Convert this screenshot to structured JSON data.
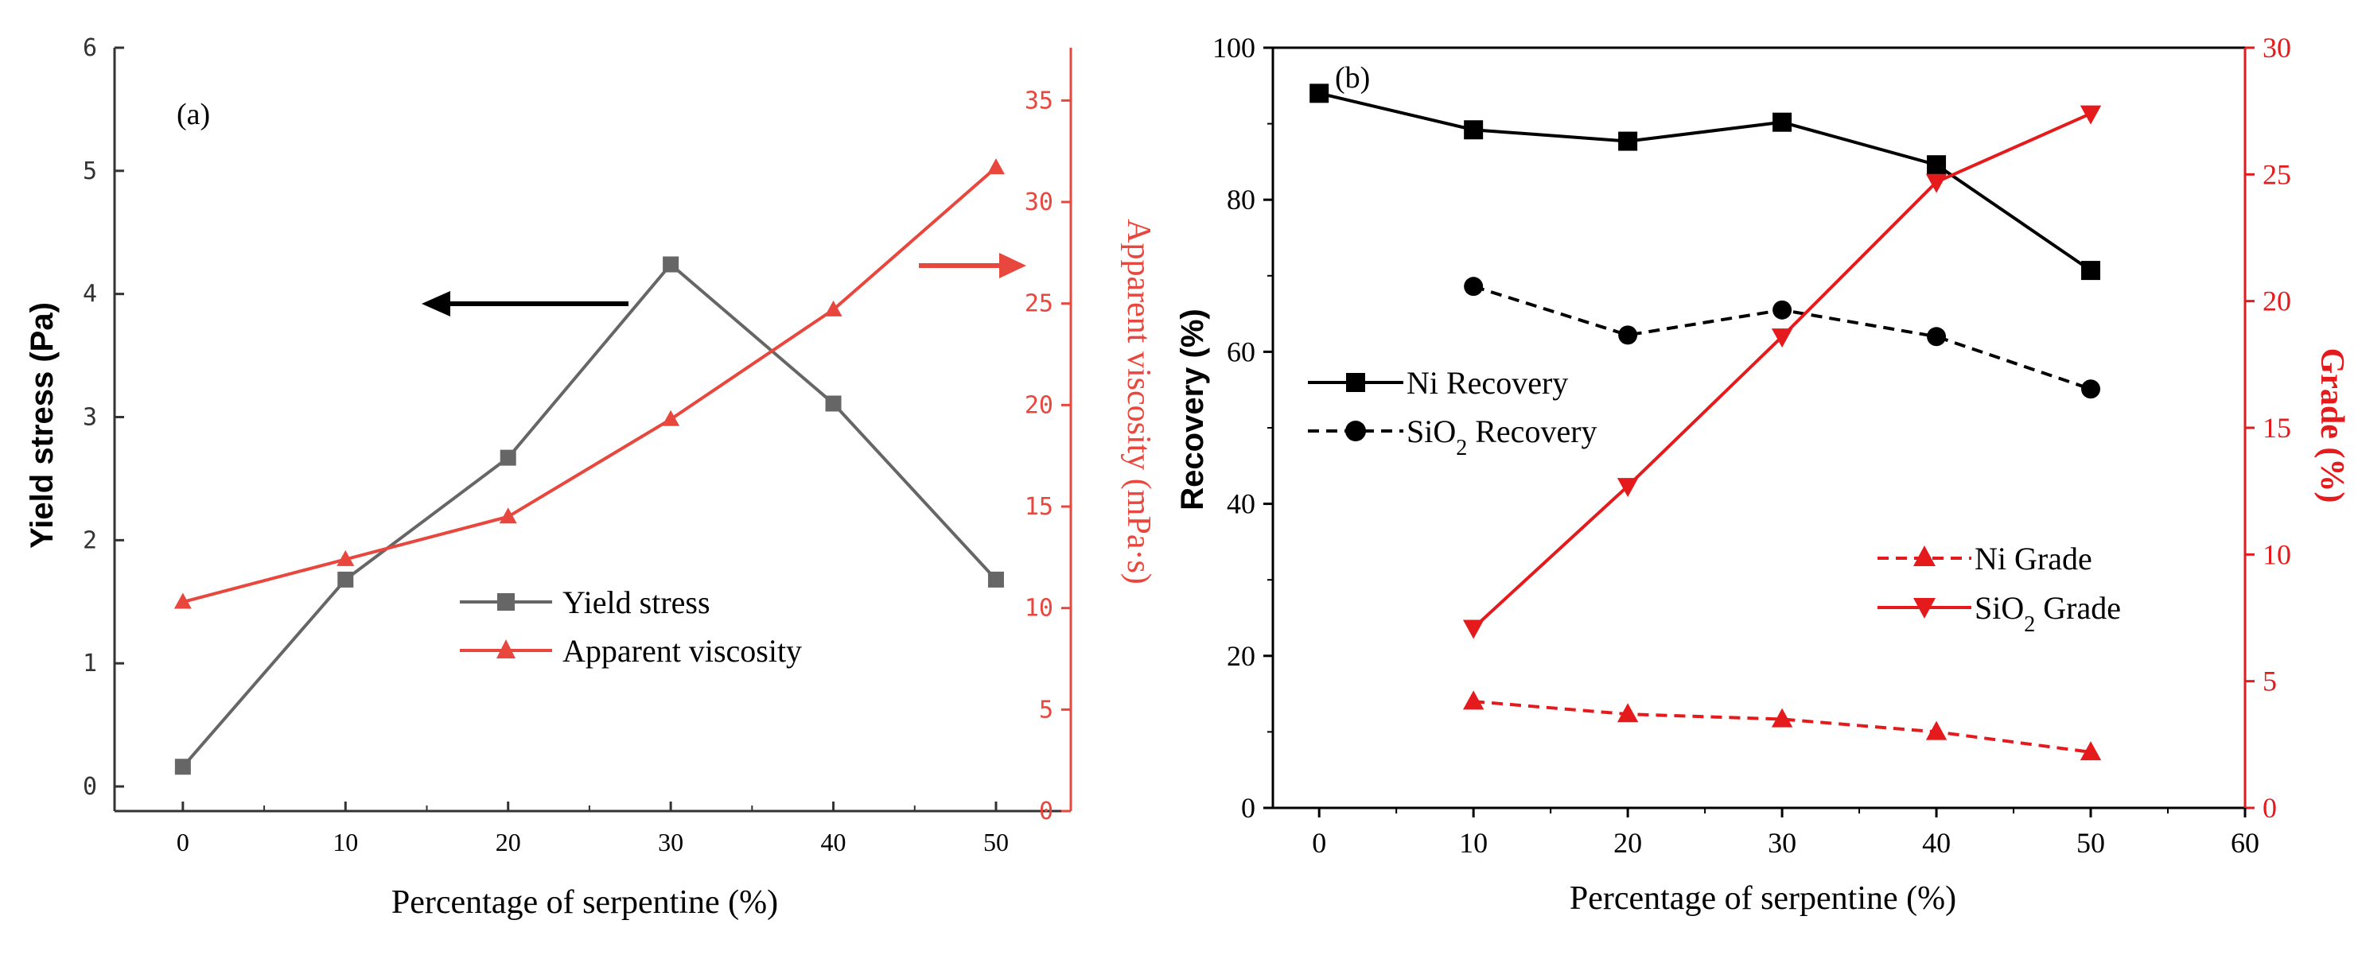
{
  "chart_data": [
    {
      "panel": "(a)",
      "type": "line",
      "x": [
        0,
        10,
        20,
        30,
        40,
        50
      ],
      "xlabel": "Percentage of serpentine (%)",
      "xticks": [
        0,
        10,
        20,
        30,
        40,
        50
      ],
      "xlim": [
        -4.2,
        54.6
      ],
      "ylabel": "Yield stress (Pa)",
      "ylim": [
        -0.2,
        6
      ],
      "yticks": [
        0,
        1,
        2,
        3,
        4,
        5,
        6
      ],
      "y2label": "Apparent viscosity (mPa·s)",
      "y2lim": [
        0,
        37.6
      ],
      "y2ticks": [
        0,
        5,
        10,
        15,
        20,
        25,
        30,
        35
      ],
      "series": [
        {
          "name": "Yield stress",
          "axis": "left",
          "marker": "square",
          "color": "#666666",
          "values": [
            0.16,
            1.68,
            2.67,
            4.24,
            3.11,
            1.68
          ]
        },
        {
          "name": "Apparent viscosity",
          "axis": "right",
          "marker": "triangle-up",
          "color": "#e8473d",
          "values": [
            10.3,
            12.4,
            14.5,
            19.3,
            24.7,
            31.7
          ]
        }
      ],
      "annotations": [
        "arrow pointing left to Yield stress axis",
        "arrow pointing right to Apparent viscosity axis"
      ]
    },
    {
      "panel": "(b)",
      "type": "line",
      "x": [
        0,
        10,
        20,
        30,
        40,
        50
      ],
      "xlabel": "Percentage of serpentine (%)",
      "xticks": [
        0,
        10,
        20,
        30,
        40,
        50,
        60
      ],
      "xlim": [
        -3,
        60
      ],
      "ylabel": "Recovery (%)",
      "ylim": [
        0,
        100
      ],
      "yticks": [
        0,
        20,
        40,
        60,
        80,
        100
      ],
      "y2label": "Grade (%)",
      "y2lim": [
        0,
        30
      ],
      "y2ticks": [
        0,
        5,
        10,
        15,
        20,
        25,
        30
      ],
      "series": [
        {
          "name": "Ni Recovery",
          "axis": "left",
          "marker": "square",
          "style": "solid",
          "color": "#000000",
          "values": [
            94.0,
            89.2,
            87.7,
            90.2,
            84.6,
            70.7
          ]
        },
        {
          "name": "SiO2 Recovery",
          "axis": "left",
          "marker": "circle",
          "style": "dashed",
          "color": "#000000",
          "values": [
            null,
            68.6,
            62.2,
            65.5,
            62.0,
            55.1
          ]
        },
        {
          "name": "Ni Grade",
          "axis": "right",
          "marker": "triangle-up",
          "style": "dashed",
          "color": "#e41a1c",
          "values": [
            null,
            4.2,
            3.7,
            3.5,
            3.0,
            2.2
          ]
        },
        {
          "name": "SiO2 Grade",
          "axis": "right",
          "marker": "triangle-down",
          "style": "solid",
          "color": "#e41a1c",
          "values": [
            null,
            7.1,
            12.7,
            18.6,
            24.7,
            27.4
          ]
        }
      ]
    }
  ]
}
